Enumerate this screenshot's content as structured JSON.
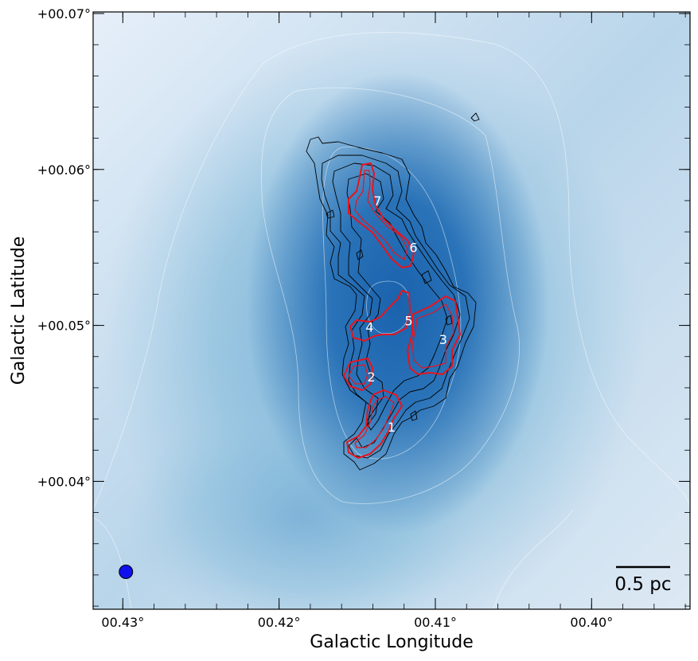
{
  "chart_data": {
    "type": "heatmap",
    "xlabel": "Galactic Longitude",
    "ylabel": "Galactic Latitude",
    "x_ticks": [
      {
        "value": 0.43,
        "label": "00.43°"
      },
      {
        "value": 0.42,
        "label": "00.42°"
      },
      {
        "value": 0.41,
        "label": "00.41°"
      },
      {
        "value": 0.4,
        "label": "00.40°"
      }
    ],
    "y_ticks": [
      {
        "value": 0.07,
        "label": "+00.07°"
      },
      {
        "value": 0.06,
        "label": "+00.06°"
      },
      {
        "value": 0.05,
        "label": "+00.05°"
      },
      {
        "value": 0.04,
        "label": "+00.04°"
      }
    ],
    "xlim": [
      0.4319,
      0.3937
    ],
    "ylim": [
      0.0318,
      0.0701
    ],
    "colormap": [
      "#e6eff9",
      "#9ec9e2",
      "#1a62ad"
    ],
    "contour_colors": {
      "background": "#ffffff",
      "structure": "#000000",
      "cores": "#e8141e"
    },
    "cores": [
      {
        "id": "1",
        "l": 0.4128,
        "b": 0.0435
      },
      {
        "id": "2",
        "l": 0.4141,
        "b": 0.0467
      },
      {
        "id": "3",
        "l": 0.4095,
        "b": 0.0491
      },
      {
        "id": "4",
        "l": 0.4142,
        "b": 0.0499
      },
      {
        "id": "5",
        "l": 0.4117,
        "b": 0.0503
      },
      {
        "id": "6",
        "l": 0.4114,
        "b": 0.055
      },
      {
        "id": "7",
        "l": 0.4137,
        "b": 0.058
      }
    ],
    "beam": {
      "l": 0.4298,
      "b": 0.0342,
      "color": "#1010ee"
    },
    "scale_bar": {
      "label": "0.5 pc"
    },
    "grid": false
  }
}
